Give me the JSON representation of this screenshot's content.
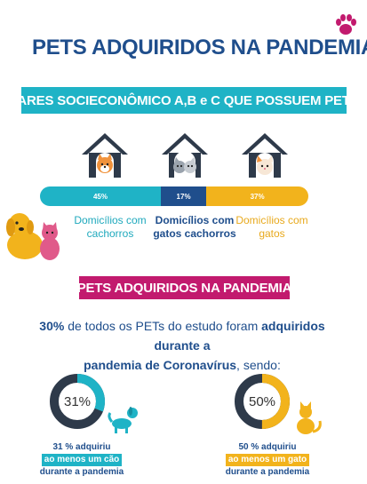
{
  "title": "PETS ADQUIRIDOS NA PANDEMIA",
  "section1": {
    "banner": "LARES SOCIECONÔMICO A,B e C QUE POSSUEM PETS",
    "segments": [
      {
        "label": "45%",
        "value": 45,
        "caption": "Domicílios com cachorros",
        "color": "#1fb3c6"
      },
      {
        "label": "17%",
        "value": 17,
        "caption": "Domicílios com gatos cachorros",
        "color": "#1f4e8c"
      },
      {
        "label": "37%",
        "value": 37,
        "caption": "Domicílios com gatos",
        "color": "#f2b31c"
      }
    ]
  },
  "section2": {
    "banner": "PETS ADQUIRIDOS NA PANDEMIA",
    "statement_strong1": "30%",
    "statement_plain1": " de todos os PETs do estudo foram ",
    "statement_strong2": "adquiridos durante a",
    "statement_strong3": "pandemia de Coronavírus",
    "statement_plain2": ", sendo:",
    "dogs": {
      "percent_label": "31%",
      "percent": 31,
      "line1": "31 % adquiriu",
      "line2": "ao menos um cão",
      "line3": "durante a pandemia",
      "color": "#1fb3c6"
    },
    "cats": {
      "percent_label": "50%",
      "percent": 50,
      "line1": "50 % adquiriu",
      "line2": "ao menos um gato",
      "line3": "durante a pandemia",
      "color": "#f2b31c"
    }
  },
  "colors": {
    "navy": "#1f4e8c",
    "teal": "#1fb3c6",
    "yellow": "#f2b31c",
    "magenta": "#c21a6e"
  }
}
